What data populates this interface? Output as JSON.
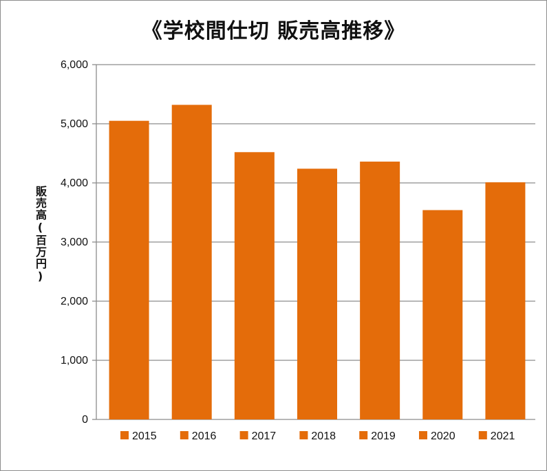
{
  "chart_data": {
    "type": "bar",
    "title": "《学校間仕切 販売高推移》",
    "ylabel": "販売高(百万円)",
    "xlabel": "",
    "categories": [
      "2015",
      "2016",
      "2017",
      "2018",
      "2019",
      "2020",
      "2021"
    ],
    "values": [
      5050,
      5320,
      4520,
      4240,
      4360,
      3540,
      4010
    ],
    "ylim": [
      0,
      6000
    ],
    "yticks": [
      "0",
      "1,000",
      "2,000",
      "3,000",
      "4,000",
      "5,000",
      "6,000"
    ],
    "grid": true,
    "legend_position": "bottom",
    "bar_color": "#e46c0a",
    "grid_color": "#8c8c8c"
  }
}
